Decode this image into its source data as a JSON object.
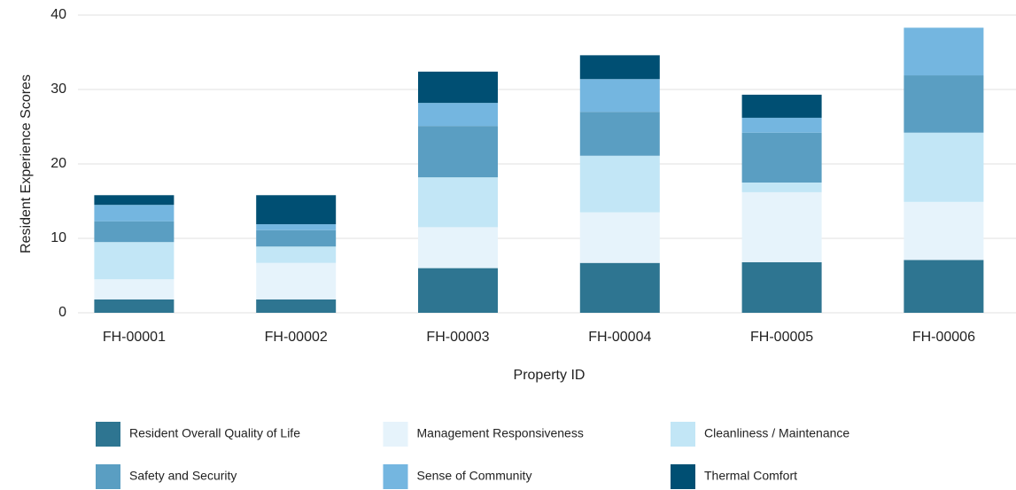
{
  "chart_data": {
    "type": "stacked_bar",
    "x_label": "Property ID",
    "y_label": "Resident Experience Scores",
    "categories": [
      "FH-00001",
      "FH-00002",
      "FH-00003",
      "FH-00004",
      "FH-00005",
      "FH-00006"
    ],
    "series": [
      {
        "name": "Resident Overall Quality of Life",
        "color": "#2e7591",
        "values": [
          1.8,
          1.8,
          6.0,
          6.7,
          6.8,
          7.1
        ]
      },
      {
        "name": "Management Responsiveness",
        "color": "#e6f3fb",
        "values": [
          2.7,
          4.9,
          5.5,
          6.8,
          9.4,
          7.8
        ]
      },
      {
        "name": "Cleanliness / Maintenance",
        "color": "#c2e6f6",
        "values": [
          5.0,
          2.2,
          6.7,
          7.6,
          1.3,
          9.3
        ]
      },
      {
        "name": "Safety and Security",
        "color": "#5a9ec2",
        "values": [
          2.8,
          2.2,
          6.9,
          5.9,
          6.7,
          7.7
        ]
      },
      {
        "name": "Sense of Community",
        "color": "#74b6e0",
        "values": [
          2.2,
          0.8,
          3.1,
          4.4,
          2.0,
          6.4
        ]
      },
      {
        "name": "Thermal Comfort",
        "color": "#004f73",
        "values": [
          1.3,
          3.9,
          4.2,
          3.2,
          3.1,
          0
        ]
      }
    ],
    "ylim": [
      0,
      40
    ],
    "yticks": [
      0,
      10,
      20,
      30,
      40
    ],
    "grid": true
  }
}
